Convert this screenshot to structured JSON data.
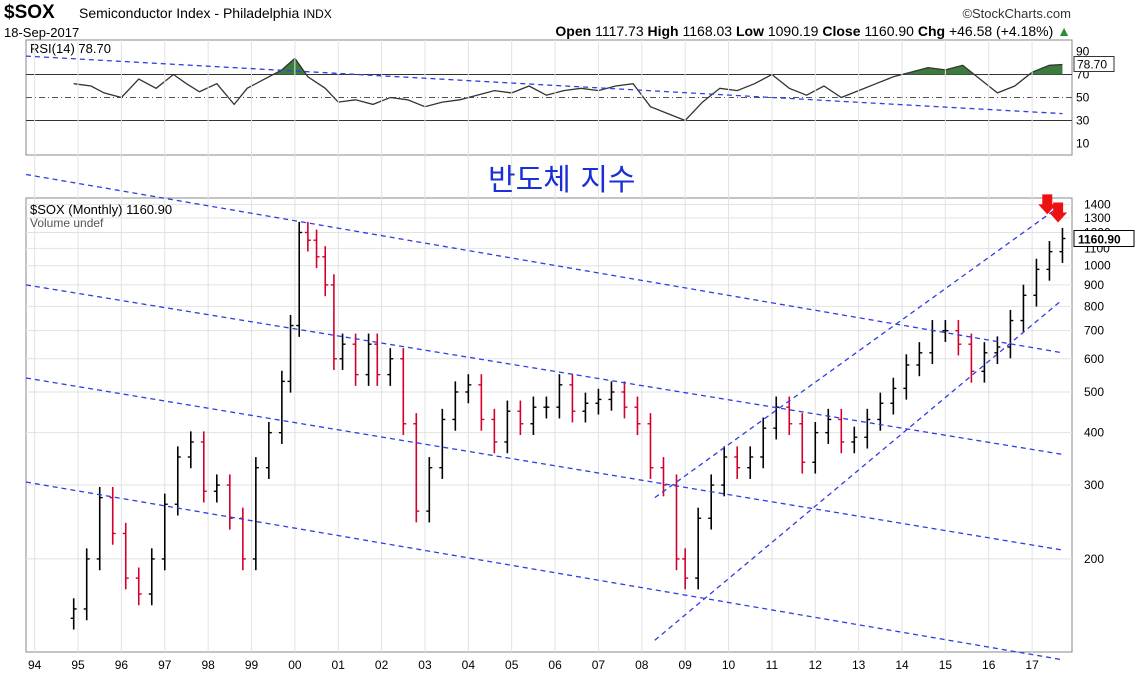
{
  "header": {
    "ticker": "$SOX",
    "name": "Semiconductor Index - Philadelphia",
    "exchange": "INDX",
    "source": "©StockCharts.com",
    "date": "18-Sep-2017",
    "open_label": "Open",
    "open": "1117.73",
    "high_label": "High",
    "high": "1168.03",
    "low_label": "Low",
    "low": "1090.19",
    "close_label": "Close",
    "close": "1160.90",
    "chg_label": "Chg",
    "chg": "+46.58 (+4.18%)"
  },
  "annotation": "반도체 지수",
  "colors": {
    "up": "#000000",
    "down": "#d4002a",
    "trend": "#2f3fe0",
    "rsi_fill": "#3d7a3d",
    "arrow": "#ee1111"
  },
  "chart_data": [
    {
      "type": "line",
      "title": "RSI(14) 78.70",
      "yticks": [
        10,
        30,
        50,
        70,
        90
      ],
      "ylim": [
        0,
        100
      ],
      "overbought": 70,
      "oversold": 30,
      "midline": 50,
      "last_value_label": "78.70",
      "x": [
        1994.9,
        1995.3,
        1995.6,
        1996.0,
        1996.4,
        1996.8,
        1997.2,
        1997.5,
        1997.8,
        1998.2,
        1998.6,
        1998.9,
        1999.3,
        1999.7,
        2000.0,
        2000.3,
        2000.7,
        2001.0,
        2001.4,
        2001.8,
        2002.2,
        2002.6,
        2003.0,
        2003.4,
        2003.8,
        2004.2,
        2004.6,
        2005.0,
        2005.4,
        2005.8,
        2006.2,
        2006.6,
        2007.0,
        2007.4,
        2007.8,
        2008.2,
        2008.6,
        2009.0,
        2009.4,
        2009.8,
        2010.2,
        2010.6,
        2011.0,
        2011.4,
        2011.8,
        2012.2,
        2012.6,
        2013.0,
        2013.4,
        2013.8,
        2014.2,
        2014.6,
        2015.0,
        2015.4,
        2015.8,
        2016.2,
        2016.6,
        2017.0,
        2017.4,
        2017.7
      ],
      "values": [
        62,
        60,
        54,
        50,
        66,
        58,
        70,
        62,
        55,
        62,
        44,
        58,
        66,
        74,
        84,
        68,
        58,
        46,
        48,
        44,
        50,
        48,
        42,
        46,
        48,
        52,
        56,
        54,
        60,
        52,
        56,
        58,
        56,
        60,
        62,
        42,
        36,
        30,
        46,
        58,
        56,
        62,
        70,
        58,
        52,
        60,
        50,
        56,
        62,
        68,
        72,
        76,
        74,
        78,
        66,
        54,
        60,
        72,
        78,
        78.7
      ]
    },
    {
      "type": "line",
      "title": "$SOX (Monthly) 1160.90",
      "subtitle": "Volume undef",
      "yscale": "log",
      "ylim": [
        120,
        1450
      ],
      "yticks": [
        200,
        300,
        400,
        500,
        600,
        700,
        800,
        900,
        1000,
        1100,
        1200,
        1300,
        1400
      ],
      "xticks": [
        "94",
        "95",
        "96",
        "97",
        "98",
        "99",
        "00",
        "01",
        "02",
        "03",
        "04",
        "05",
        "06",
        "07",
        "08",
        "09",
        "10",
        "11",
        "12",
        "13",
        "14",
        "15",
        "16",
        "17"
      ],
      "last_value_label": "1160.90",
      "x": [
        1994.9,
        1995.2,
        1995.5,
        1995.8,
        1996.1,
        1996.4,
        1996.7,
        1997.0,
        1997.3,
        1997.6,
        1997.9,
        1998.2,
        1998.5,
        1998.8,
        1999.1,
        1999.4,
        1999.7,
        1999.9,
        2000.1,
        2000.3,
        2000.5,
        2000.7,
        2000.9,
        2001.1,
        2001.4,
        2001.7,
        2001.9,
        2002.2,
        2002.5,
        2002.8,
        2003.1,
        2003.4,
        2003.7,
        2004.0,
        2004.3,
        2004.6,
        2004.9,
        2005.2,
        2005.5,
        2005.8,
        2006.1,
        2006.4,
        2006.7,
        2007.0,
        2007.3,
        2007.6,
        2007.9,
        2008.2,
        2008.5,
        2008.8,
        2009.0,
        2009.3,
        2009.6,
        2009.9,
        2010.2,
        2010.5,
        2010.8,
        2011.1,
        2011.4,
        2011.7,
        2012.0,
        2012.3,
        2012.6,
        2012.9,
        2013.2,
        2013.5,
        2013.8,
        2014.1,
        2014.4,
        2014.7,
        2015.0,
        2015.3,
        2015.6,
        2015.9,
        2016.2,
        2016.5,
        2016.8,
        2017.1,
        2017.4,
        2017.7
      ],
      "values": [
        152,
        200,
        280,
        230,
        180,
        165,
        200,
        270,
        350,
        380,
        290,
        300,
        250,
        200,
        330,
        400,
        530,
        720,
        1200,
        1150,
        1050,
        900,
        600,
        650,
        550,
        650,
        550,
        600,
        420,
        260,
        330,
        430,
        500,
        520,
        430,
        380,
        450,
        420,
        460,
        460,
        520,
        450,
        470,
        480,
        500,
        460,
        420,
        330,
        300,
        200,
        180,
        250,
        300,
        350,
        330,
        350,
        410,
        460,
        420,
        340,
        400,
        430,
        380,
        390,
        430,
        470,
        510,
        580,
        620,
        700,
        700,
        650,
        560,
        620,
        640,
        740,
        850,
        980,
        1080,
        1160.9
      ]
    }
  ],
  "trend_lines": [
    {
      "x": [
        1993.8,
        2017.7
      ],
      "y_rsi": [
        86,
        36
      ]
    },
    {
      "x": [
        1993.8,
        2017.7
      ],
      "y": [
        1650,
        620
      ]
    },
    {
      "x": [
        1993.8,
        2017.7
      ],
      "y": [
        900,
        355
      ]
    },
    {
      "x": [
        1993.8,
        2017.7
      ],
      "y": [
        540,
        210
      ]
    },
    {
      "x": [
        1993.8,
        2017.7
      ],
      "y": [
        305,
        115
      ]
    },
    {
      "x": [
        2008.3,
        2017.7
      ],
      "y": [
        280,
        1400
      ]
    },
    {
      "x": [
        2008.3,
        2017.7
      ],
      "y": [
        128,
        830
      ]
    }
  ],
  "markers": [
    {
      "x": 2017.35,
      "y": 1370,
      "shape": "down-arrow"
    },
    {
      "x": 2017.6,
      "y": 1310,
      "shape": "down-arrow"
    }
  ]
}
